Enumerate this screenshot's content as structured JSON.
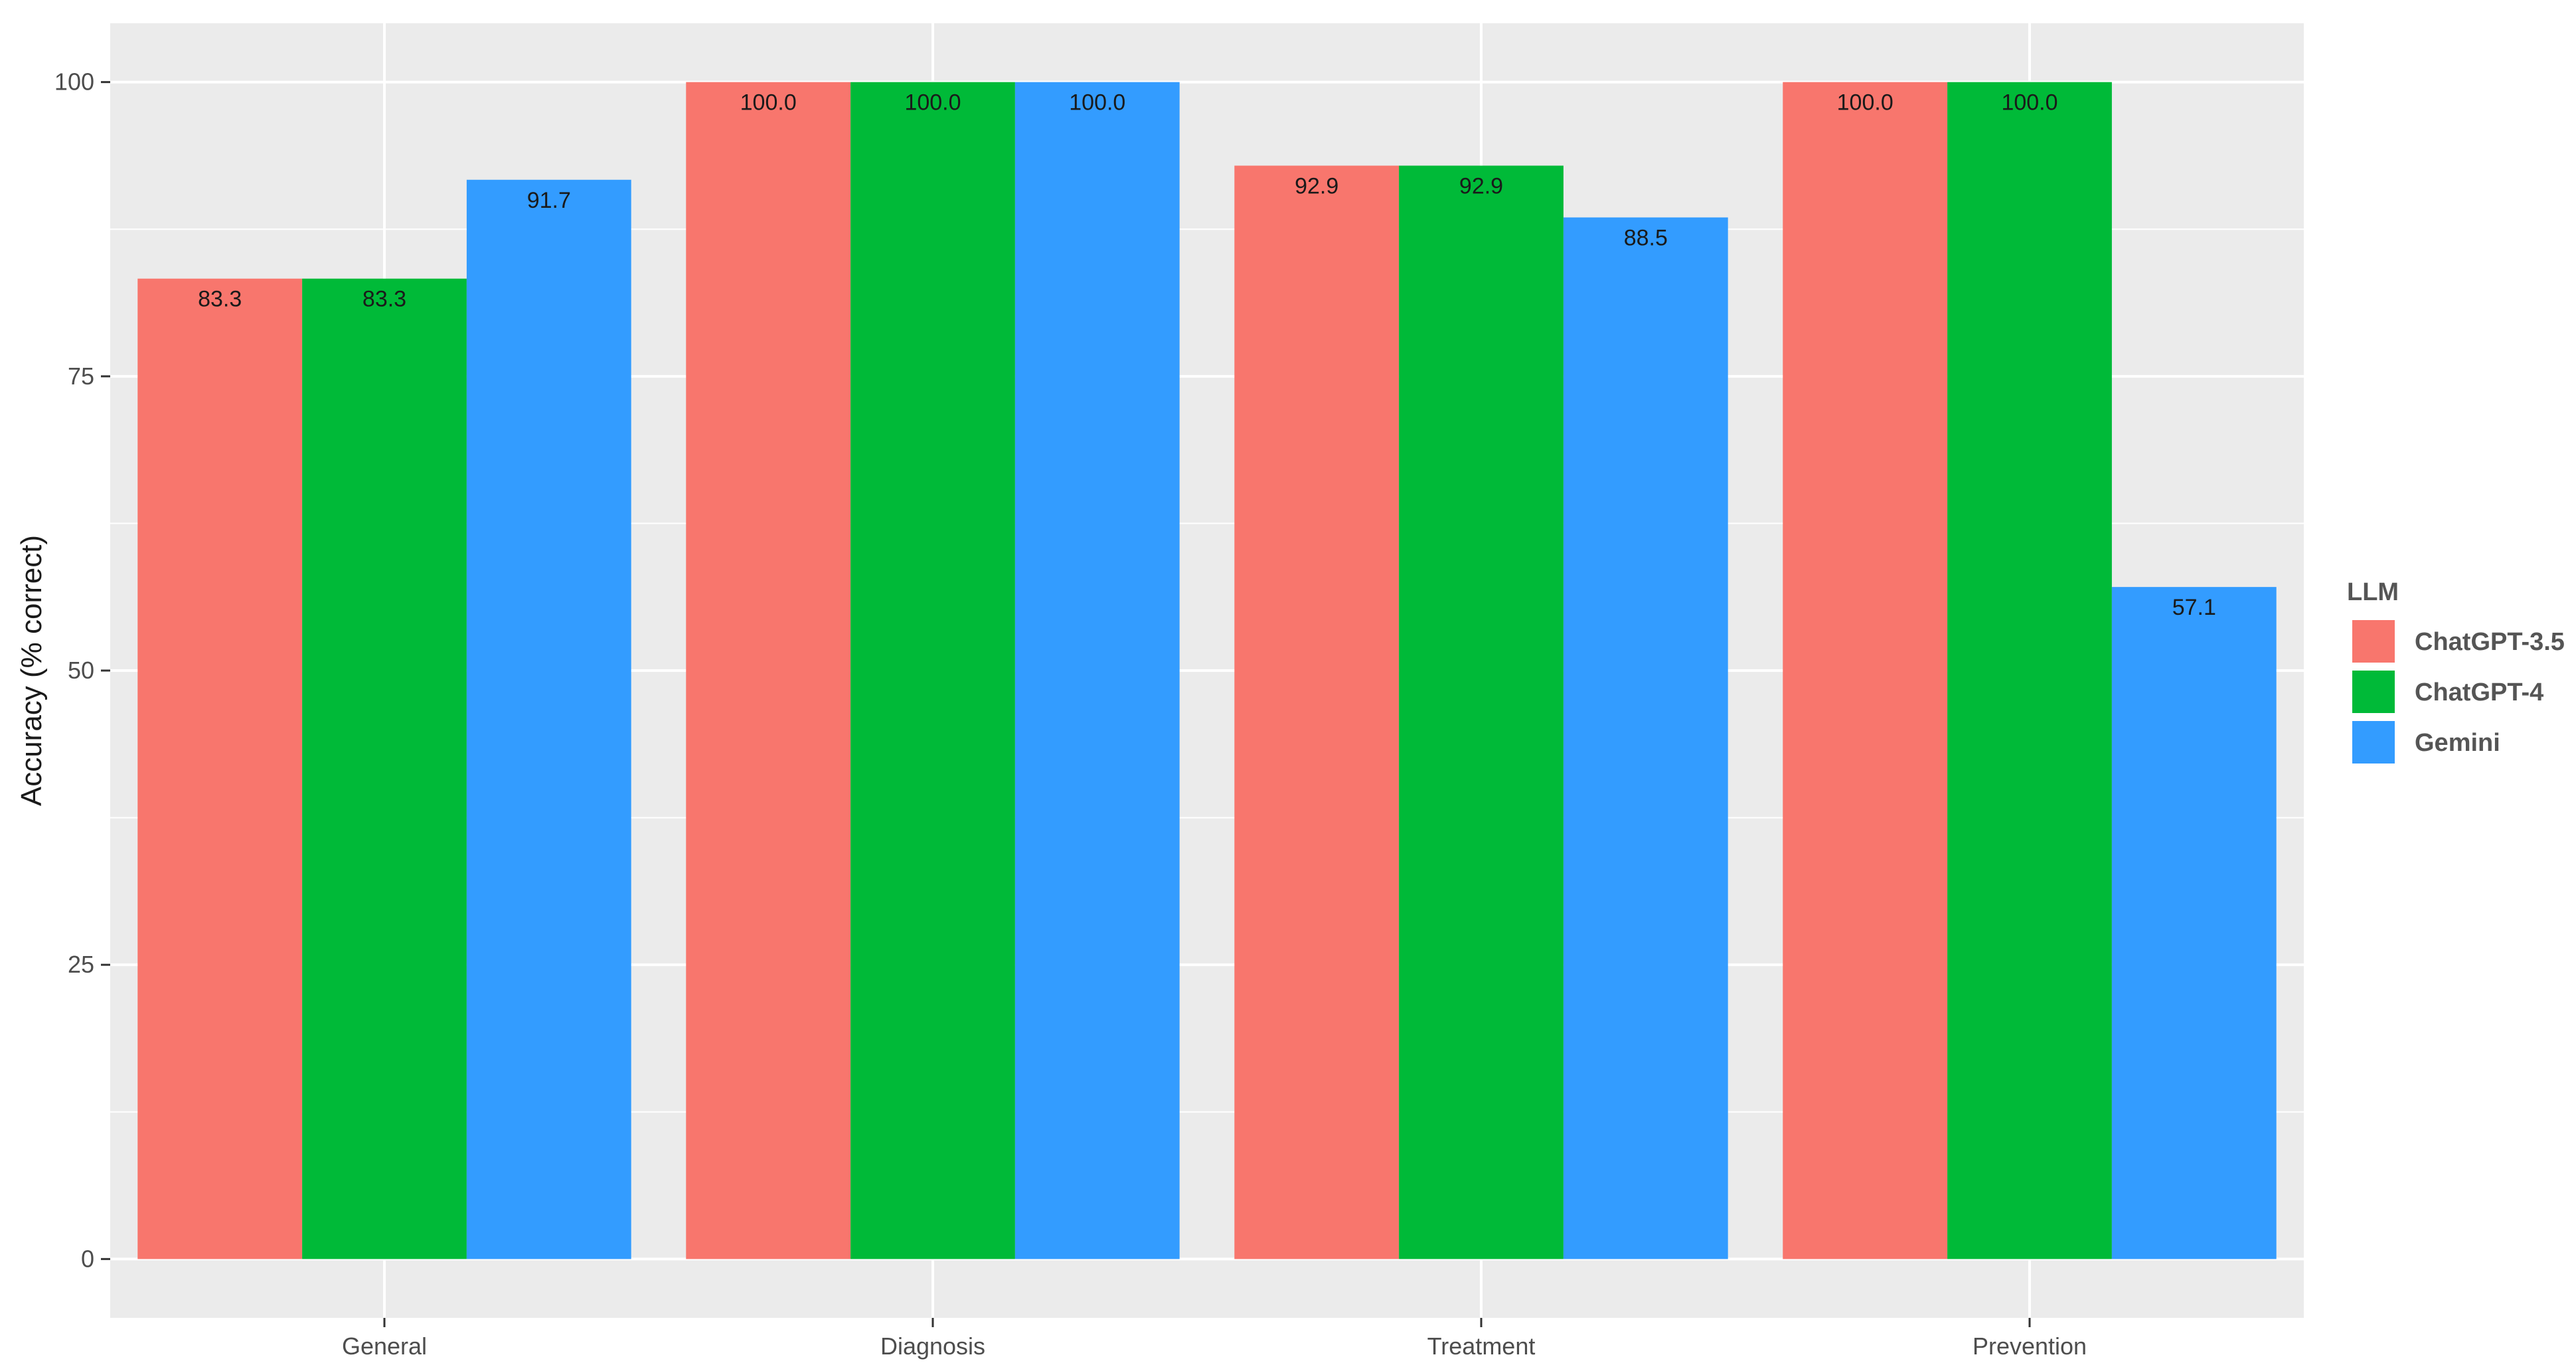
{
  "chart_data": {
    "type": "bar",
    "title": "",
    "xlabel": "",
    "ylabel": "Accuracy (% correct)",
    "categories": [
      "General",
      "Diagnosis",
      "Treatment",
      "Prevention"
    ],
    "series": [
      {
        "name": "ChatGPT-3.5",
        "color": "#F8766D",
        "values": [
          83.3,
          100.0,
          92.9,
          100.0
        ]
      },
      {
        "name": "ChatGPT-4",
        "color": "#00BA38",
        "values": [
          83.3,
          100.0,
          92.9,
          100.0
        ]
      },
      {
        "name": "Gemini",
        "color": "#339CFF",
        "values": [
          91.7,
          100.0,
          88.5,
          57.1
        ]
      }
    ],
    "ylim": [
      -5,
      105
    ],
    "yticks": [
      0,
      25,
      50,
      75,
      100
    ],
    "ytick_labels": [
      "0",
      "25",
      "50",
      "75",
      "100"
    ],
    "value_labels": [
      [
        "83.3",
        "100.0",
        "92.9",
        "100.0"
      ],
      [
        "83.3",
        "100.0",
        "92.9",
        "100.0"
      ],
      [
        "91.7",
        "100.0",
        "88.5",
        "57.1"
      ]
    ],
    "legend": {
      "title": "LLM",
      "position": "right"
    },
    "grid": true,
    "panel_background": "#EBEBEB"
  }
}
